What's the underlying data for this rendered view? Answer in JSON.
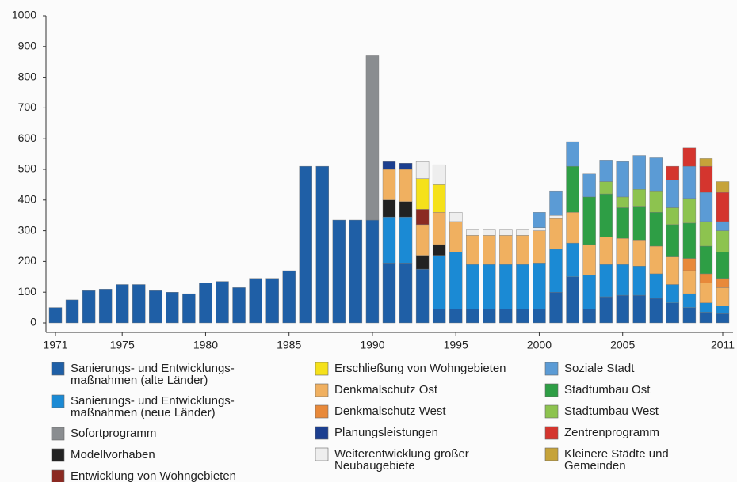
{
  "chart_data": {
    "type": "bar",
    "stacked": true,
    "x": [
      1971,
      1972,
      1973,
      1974,
      1975,
      1976,
      1977,
      1978,
      1979,
      1980,
      1981,
      1982,
      1983,
      1984,
      1985,
      1986,
      1987,
      1988,
      1989,
      1990,
      1991,
      1992,
      1993,
      1994,
      1995,
      1996,
      1997,
      1998,
      1999,
      2000,
      2001,
      2002,
      2003,
      2004,
      2005,
      2006,
      2007,
      2008,
      2009,
      2010,
      2011
    ],
    "xlim": [
      1971,
      2011
    ],
    "xticks": [
      1971,
      1975,
      1980,
      1985,
      1990,
      1995,
      2000,
      2005,
      2011
    ],
    "ylim": [
      0,
      1000
    ],
    "yticks": [
      0,
      100,
      200,
      300,
      400,
      500,
      600,
      700,
      800,
      900,
      1000
    ],
    "series": [
      {
        "name": "Sanierungs- und Entwicklungs-\nmaßnahmen (alte Länder)",
        "color": "#1f5fa6",
        "values": [
          50,
          75,
          105,
          110,
          125,
          125,
          105,
          100,
          95,
          130,
          135,
          115,
          145,
          145,
          170,
          510,
          510,
          335,
          335,
          335,
          195,
          195,
          175,
          45,
          45,
          45,
          45,
          45,
          45,
          45,
          100,
          150,
          45,
          85,
          90,
          90,
          80,
          65,
          50,
          35,
          30
        ]
      },
      {
        "name": "Sanierungs- und Entwicklungs-\nmaßnahmen (neue Länder)",
        "color": "#1b8ad4",
        "values": [
          null,
          null,
          null,
          null,
          null,
          null,
          null,
          null,
          null,
          null,
          null,
          null,
          null,
          null,
          null,
          null,
          null,
          null,
          null,
          null,
          150,
          150,
          null,
          175,
          185,
          145,
          145,
          145,
          145,
          150,
          140,
          110,
          110,
          105,
          100,
          95,
          80,
          60,
          45,
          30,
          25
        ]
      },
      {
        "name": "Sofortprogramm",
        "color": "#8a8d90",
        "values": [
          null,
          null,
          null,
          null,
          null,
          null,
          null,
          null,
          null,
          null,
          null,
          null,
          null,
          null,
          null,
          null,
          null,
          null,
          null,
          535,
          null,
          null,
          null,
          null,
          null,
          null,
          null,
          null,
          null,
          null,
          null,
          null,
          null,
          null,
          null,
          null,
          null,
          null,
          null,
          null,
          null
        ]
      },
      {
        "name": "Modellvorhaben",
        "color": "#222222",
        "values": [
          null,
          null,
          null,
          null,
          null,
          null,
          null,
          null,
          null,
          null,
          null,
          null,
          null,
          null,
          null,
          null,
          null,
          null,
          null,
          null,
          55,
          50,
          45,
          35,
          null,
          null,
          null,
          null,
          null,
          null,
          null,
          null,
          null,
          null,
          null,
          null,
          null,
          null,
          null,
          null,
          null
        ]
      },
      {
        "name": "Entwicklung von Wohngebieten",
        "color": "#8b2a22",
        "values": [
          null,
          null,
          null,
          null,
          null,
          null,
          null,
          null,
          null,
          null,
          null,
          null,
          null,
          null,
          null,
          null,
          null,
          null,
          null,
          null,
          null,
          null,
          50,
          null,
          null,
          null,
          null,
          null,
          null,
          null,
          null,
          null,
          null,
          null,
          null,
          null,
          null,
          null,
          null,
          null,
          null
        ]
      },
      {
        "name": "Erschließung von Wohngebieten",
        "color": "#f5e11a",
        "values": [
          null,
          null,
          null,
          null,
          null,
          null,
          null,
          null,
          null,
          null,
          null,
          null,
          null,
          null,
          null,
          null,
          null,
          null,
          null,
          null,
          null,
          null,
          100,
          90,
          null,
          null,
          null,
          null,
          null,
          null,
          null,
          null,
          null,
          null,
          null,
          null,
          null,
          null,
          null,
          null,
          null
        ]
      },
      {
        "name": "Denkmalschutz Ost",
        "color": "#f0b060",
        "values": [
          null,
          null,
          null,
          null,
          null,
          null,
          null,
          null,
          null,
          null,
          null,
          null,
          null,
          null,
          null,
          null,
          null,
          null,
          null,
          null,
          100,
          105,
          100,
          105,
          100,
          95,
          95,
          95,
          95,
          105,
          100,
          100,
          100,
          90,
          85,
          85,
          90,
          90,
          75,
          65,
          60
        ]
      },
      {
        "name": "Denkmalschutz West",
        "color": "#e8893a",
        "values": [
          null,
          null,
          null,
          null,
          null,
          null,
          null,
          null,
          null,
          null,
          null,
          null,
          null,
          null,
          null,
          null,
          null,
          null,
          null,
          null,
          null,
          null,
          null,
          null,
          null,
          null,
          null,
          null,
          null,
          null,
          null,
          null,
          null,
          null,
          null,
          null,
          null,
          null,
          40,
          30,
          30
        ]
      },
      {
        "name": "Planungsleistungen",
        "color": "#1c3f8f",
        "values": [
          null,
          null,
          null,
          null,
          null,
          null,
          null,
          null,
          null,
          null,
          null,
          null,
          null,
          null,
          null,
          null,
          null,
          null,
          null,
          null,
          25,
          20,
          null,
          null,
          null,
          null,
          null,
          null,
          null,
          null,
          null,
          null,
          null,
          null,
          null,
          null,
          null,
          null,
          null,
          null,
          null
        ]
      },
      {
        "name": "Weiterentwicklung großer\nNeubaugebiete",
        "color": "#eeeeee",
        "values": [
          null,
          null,
          null,
          null,
          null,
          null,
          null,
          null,
          null,
          null,
          null,
          null,
          null,
          null,
          null,
          null,
          null,
          null,
          null,
          null,
          null,
          null,
          55,
          65,
          30,
          20,
          20,
          20,
          20,
          10,
          10,
          null,
          null,
          null,
          null,
          null,
          null,
          null,
          null,
          null,
          null
        ]
      },
      {
        "name": "Soziale Stadt",
        "color": "#5b9bd5",
        "values": [
          null,
          null,
          null,
          null,
          null,
          null,
          null,
          null,
          null,
          null,
          null,
          null,
          null,
          null,
          null,
          null,
          null,
          null,
          null,
          null,
          null,
          null,
          null,
          null,
          null,
          null,
          null,
          null,
          null,
          50,
          80,
          80,
          75,
          70,
          115,
          110,
          110,
          90,
          105,
          95,
          30
        ]
      },
      {
        "name": "Stadtumbau Ost",
        "color": "#2e9e45",
        "values": [
          null,
          null,
          null,
          null,
          null,
          null,
          null,
          null,
          null,
          null,
          null,
          null,
          null,
          null,
          null,
          null,
          null,
          null,
          null,
          null,
          null,
          null,
          null,
          null,
          null,
          null,
          null,
          null,
          null,
          null,
          null,
          150,
          155,
          140,
          100,
          110,
          110,
          105,
          115,
          90,
          85
        ]
      },
      {
        "name": "Stadtumbau West",
        "color": "#8dc34f",
        "values": [
          null,
          null,
          null,
          null,
          null,
          null,
          null,
          null,
          null,
          null,
          null,
          null,
          null,
          null,
          null,
          null,
          null,
          null,
          null,
          null,
          null,
          null,
          null,
          null,
          null,
          null,
          null,
          null,
          null,
          null,
          null,
          null,
          null,
          40,
          35,
          55,
          70,
          55,
          80,
          80,
          70
        ]
      },
      {
        "name": "Zentrenprogramm",
        "color": "#d4352e",
        "values": [
          null,
          null,
          null,
          null,
          null,
          null,
          null,
          null,
          null,
          null,
          null,
          null,
          null,
          null,
          null,
          null,
          null,
          null,
          null,
          null,
          null,
          null,
          null,
          null,
          null,
          null,
          null,
          null,
          null,
          null,
          null,
          null,
          null,
          null,
          null,
          null,
          null,
          45,
          60,
          85,
          95
        ]
      },
      {
        "name": "Kleinere Städte und\nGemeinden",
        "color": "#c6a33a",
        "values": [
          null,
          null,
          null,
          null,
          null,
          null,
          null,
          null,
          null,
          null,
          null,
          null,
          null,
          null,
          null,
          null,
          null,
          null,
          null,
          null,
          null,
          null,
          null,
          null,
          null,
          null,
          null,
          null,
          null,
          null,
          null,
          null,
          null,
          null,
          null,
          null,
          null,
          null,
          null,
          25,
          35
        ]
      }
    ]
  }
}
